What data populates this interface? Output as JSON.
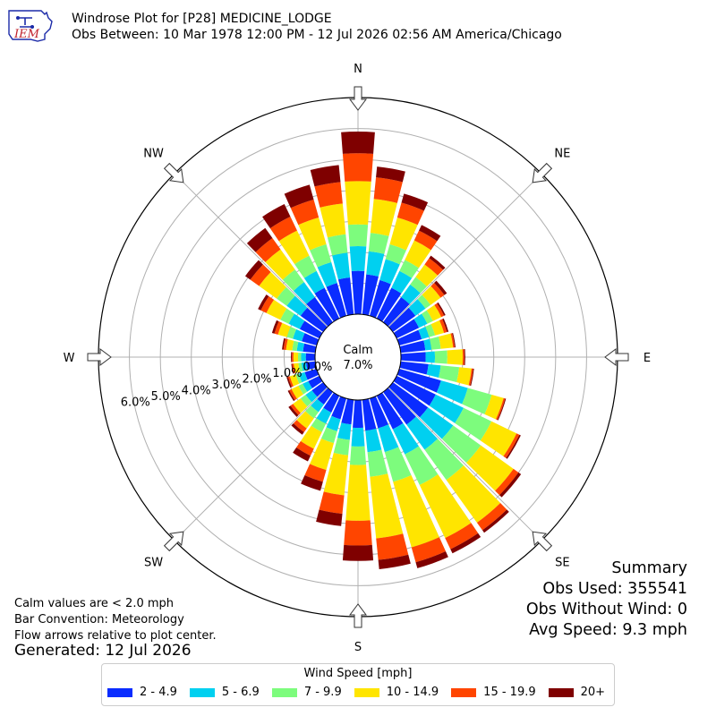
{
  "header": {
    "logo_text": "IEM",
    "title_line1": "Windrose Plot for [P28] MEDICINE_LODGE",
    "title_line2": "Obs Between: 10 Mar 1978 12:00 PM - 12 Jul 2026 02:56 AM America/Chicago"
  },
  "notes": {
    "calm_def": "Calm values are < 2.0 mph",
    "convention": "Bar Convention: Meteorology",
    "flow": "Flow arrows relative to plot center.",
    "generated": "Generated: 12 Jul 2026"
  },
  "summary": {
    "title": "Summary",
    "obs_used": "Obs Used: 355541",
    "obs_without_wind": "Obs Without Wind: 0",
    "avg_speed": "Avg Speed: 9.3 mph"
  },
  "calm": {
    "label": "Calm",
    "value": "7.0%"
  },
  "legend": {
    "title": "Wind Speed [mph]",
    "items": [
      {
        "label": "2 - 4.9",
        "color": "#0a2cff"
      },
      {
        "label": "5 - 6.9",
        "color": "#00d0f0"
      },
      {
        "label": "7 - 9.9",
        "color": "#7dfc7d"
      },
      {
        "label": "10 - 14.9",
        "color": "#ffe500"
      },
      {
        "label": "15 - 19.9",
        "color": "#ff4500"
      },
      {
        "label": "20+",
        "color": "#7f0000"
      }
    ]
  },
  "chart_data": {
    "type": "windrose",
    "title": "Windrose Plot for [P28] MEDICINE_LODGE",
    "radial_ticks": [
      "0.0%",
      "1.0%",
      "2.0%",
      "3.0%",
      "4.0%",
      "5.0%",
      "6.0%"
    ],
    "rmax_percent": 7.0,
    "calm_percent": 7.0,
    "compass_labels": [
      "N",
      "NE",
      "E",
      "SE",
      "S",
      "SW",
      "W",
      "NW"
    ],
    "direction_degrees": [
      0,
      10,
      20,
      30,
      40,
      50,
      60,
      70,
      80,
      90,
      100,
      110,
      120,
      130,
      140,
      150,
      160,
      170,
      180,
      190,
      200,
      210,
      220,
      230,
      240,
      250,
      260,
      270,
      280,
      290,
      300,
      310,
      320,
      330,
      340,
      350
    ],
    "series": [
      {
        "name": "2 - 4.9",
        "values": [
          1.4,
          1.3,
          1.2,
          1.1,
          1.0,
          0.9,
          0.8,
          0.75,
          0.8,
          0.8,
          0.9,
          1.4,
          1.4,
          1.4,
          1.3,
          1.2,
          1.0,
          1.0,
          0.9,
          0.8,
          0.7,
          0.6,
          0.5,
          0.45,
          0.4,
          0.4,
          0.3,
          0.3,
          0.4,
          0.5,
          0.7,
          0.9,
          1.0,
          1.1,
          1.1,
          1.2
        ]
      },
      {
        "name": "5 - 6.9",
        "values": [
          0.8,
          0.75,
          0.7,
          0.6,
          0.5,
          0.4,
          0.3,
          0.25,
          0.2,
          0.3,
          0.4,
          0.9,
          1.0,
          1.0,
          1.0,
          0.9,
          0.8,
          0.7,
          0.6,
          0.5,
          0.4,
          0.4,
          0.3,
          0.25,
          0.2,
          0.2,
          0.15,
          0.15,
          0.2,
          0.3,
          0.4,
          0.55,
          0.6,
          0.6,
          0.7,
          0.8
        ]
      },
      {
        "name": "7 - 9.9",
        "values": [
          0.7,
          0.6,
          0.5,
          0.4,
          0.3,
          0.2,
          0.2,
          0.2,
          0.3,
          0.4,
          0.6,
          0.8,
          1.0,
          1.1,
          1.2,
          1.1,
          1.0,
          0.8,
          0.6,
          0.5,
          0.4,
          0.3,
          0.25,
          0.2,
          0.15,
          0.1,
          0.1,
          0.1,
          0.15,
          0.2,
          0.3,
          0.4,
          0.5,
          0.55,
          0.6,
          0.6
        ]
      },
      {
        "name": "10 - 14.9",
        "values": [
          1.4,
          1.1,
          0.9,
          0.7,
          0.5,
          0.4,
          0.3,
          0.3,
          0.4,
          0.5,
          0.4,
          0.4,
          0.9,
          1.3,
          1.7,
          1.9,
          2.2,
          2.0,
          1.8,
          1.3,
          0.9,
          0.6,
          0.4,
          0.3,
          0.25,
          0.2,
          0.15,
          0.15,
          0.2,
          0.3,
          0.5,
          0.7,
          0.8,
          0.9,
          0.9,
          1.0
        ]
      },
      {
        "name": "15 - 19.9",
        "values": [
          0.9,
          0.7,
          0.5,
          0.35,
          0.25,
          0.15,
          0.1,
          0.1,
          0.05,
          0.05,
          0.05,
          0.05,
          0.1,
          0.2,
          0.3,
          0.4,
          0.5,
          0.7,
          0.8,
          0.6,
          0.4,
          0.25,
          0.15,
          0.1,
          0.08,
          0.06,
          0.05,
          0.05,
          0.08,
          0.12,
          0.2,
          0.35,
          0.45,
          0.5,
          0.6,
          0.7
        ]
      },
      {
        "name": "20+",
        "values": [
          0.7,
          0.35,
          0.3,
          0.2,
          0.1,
          0.1,
          0.05,
          0.05,
          0.03,
          0.03,
          0.03,
          0.03,
          0.05,
          0.1,
          0.1,
          0.15,
          0.2,
          0.3,
          0.5,
          0.4,
          0.3,
          0.2,
          0.1,
          0.08,
          0.05,
          0.05,
          0.03,
          0.03,
          0.05,
          0.08,
          0.1,
          0.2,
          0.4,
          0.45,
          0.5,
          0.55
        ]
      }
    ],
    "grid": true
  }
}
